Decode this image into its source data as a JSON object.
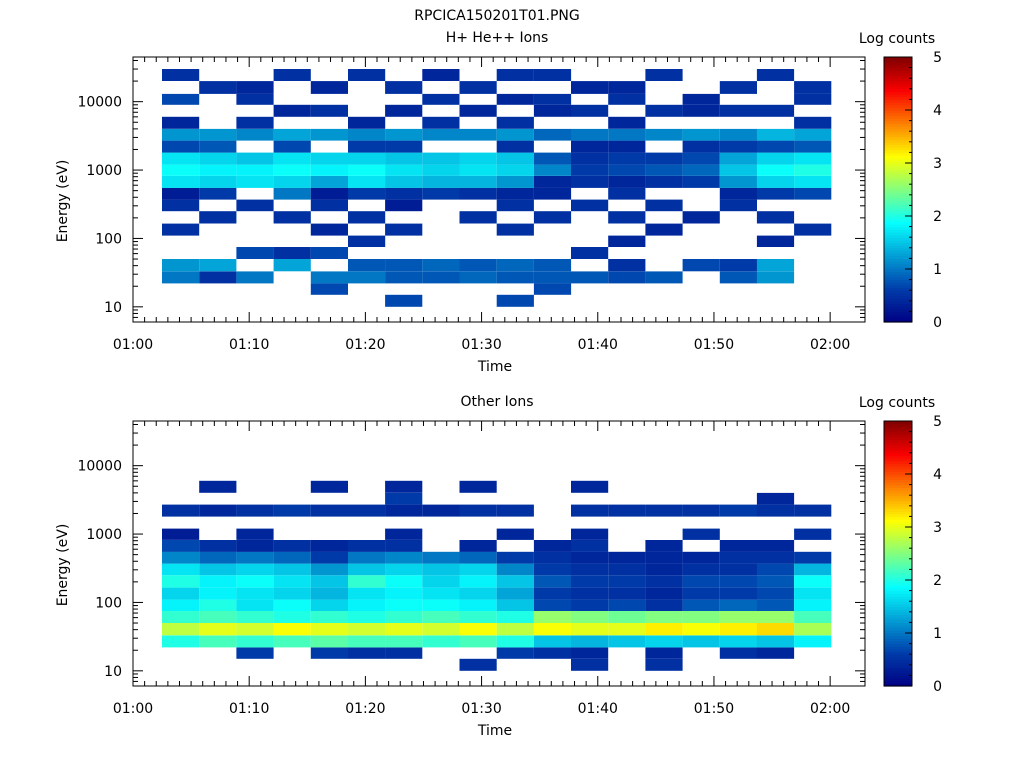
{
  "figure_title": "RPCICA150201T01.PNG",
  "colorbar_ticks": [
    "0",
    "1",
    "2",
    "3",
    "4",
    "5"
  ],
  "chart_data": [
    {
      "type": "heatmap",
      "title": "H+ He++ Ions",
      "xlabel": "Time",
      "ylabel": "Energy (eV)",
      "colorbar_label": "Log counts",
      "colorbar_range": [
        0,
        5
      ],
      "x_range_min": [
        0,
        63
      ],
      "x_ticks": [
        "01:00",
        "01:10",
        "01:20",
        "01:30",
        "01:40",
        "01:50",
        "02:00"
      ],
      "x_tick_values_min": [
        0,
        10,
        20,
        30,
        40,
        50,
        60
      ],
      "y_scale": "log",
      "y_range": [
        6,
        45000
      ],
      "y_ticks": [
        "10",
        "100",
        "1000",
        "10000"
      ],
      "y_tick_values": [
        10,
        100,
        1000,
        10000
      ],
      "time_bins_start_min": [
        2.5,
        5.7,
        8.9,
        12.1,
        15.3,
        18.5,
        21.7,
        24.9,
        28.1,
        31.3,
        34.5,
        37.7,
        40.9,
        44.1,
        47.3,
        50.5,
        53.7,
        56.9
      ],
      "time_bin_width_min": 3.2,
      "energy_bins_start_ev": [
        10,
        15,
        22,
        33,
        50,
        75,
        110,
        165,
        250,
        370,
        550,
        820,
        1200,
        1800,
        2700,
        4000,
        6000,
        9000,
        13000,
        20000
      ],
      "values": [
        [
          0,
          0,
          1.0,
          1.2,
          0,
          0,
          0.5,
          0,
          0.5,
          0.3,
          1.7,
          1.9,
          1.7,
          0.7,
          1.2,
          0.4,
          0,
          0.7,
          0,
          0.5
        ],
        [
          0,
          0,
          0.5,
          1.3,
          0,
          0,
          0,
          0.5,
          0,
          0.6,
          1.6,
          1.8,
          1.6,
          0.8,
          1.2,
          0,
          0,
          0,
          0.5,
          0
        ],
        [
          0,
          0,
          1.0,
          0,
          0.7,
          0,
          0,
          0,
          0.5,
          0,
          1.7,
          1.8,
          1.5,
          0,
          1.1,
          0.5,
          0,
          0.5,
          0.4,
          0
        ],
        [
          0,
          0,
          0,
          1.3,
          0.5,
          0,
          0,
          0.5,
          0,
          1.0,
          1.6,
          1.9,
          1.7,
          0.7,
          1.3,
          0,
          0.4,
          0,
          0,
          0.5
        ],
        [
          0,
          0.7,
          1.0,
          0,
          0.7,
          0,
          0.4,
          0,
          0.5,
          0.3,
          1.3,
          1.8,
          1.6,
          0,
          1.2,
          0,
          0.5,
          0,
          0.4,
          0
        ],
        [
          0,
          0,
          1.0,
          0.8,
          0,
          0.5,
          0,
          0.5,
          0,
          0.6,
          1.7,
          1.9,
          1.6,
          0.6,
          1.1,
          0.4,
          0,
          0,
          0,
          0.5
        ],
        [
          0.7,
          0,
          0.8,
          0.8,
          0,
          0,
          0.5,
          0,
          0.3,
          0.5,
          1.5,
          1.7,
          1.5,
          0.6,
          1.2,
          0,
          0.4,
          0,
          0.5,
          0
        ],
        [
          0,
          0,
          0.8,
          0.9,
          0,
          0,
          0,
          0,
          0,
          0.6,
          1.4,
          1.6,
          1.5,
          0,
          1.1,
          0.5,
          0,
          0.5,
          0,
          0.4
        ],
        [
          0,
          0,
          0.9,
          0.8,
          0,
          0,
          0,
          0.5,
          0,
          0.5,
          1.4,
          1.7,
          1.6,
          0,
          1.1,
          0,
          0.4,
          0,
          0.5,
          0
        ],
        [
          0.7,
          0,
          0.8,
          0.9,
          0,
          0,
          0.5,
          0,
          0.5,
          0.4,
          1.2,
          1.6,
          1.5,
          0.5,
          1.2,
          0.5,
          0,
          0.4,
          0,
          0.5
        ],
        [
          0,
          0.7,
          0.8,
          0.8,
          0,
          0,
          0,
          0.5,
          0,
          0.4,
          0.4,
          1.1,
          0.8,
          0,
          0.9,
          0,
          0.4,
          0.5,
          0,
          0.5
        ],
        [
          0,
          0,
          0.8,
          0,
          0.5,
          0,
          0,
          0,
          0.5,
          0,
          0.5,
          0.6,
          0.5,
          0.4,
          1.0,
          0,
          0.5,
          0,
          0.4,
          0
        ],
        [
          0,
          0,
          0.7,
          0.5,
          0,
          0.4,
          0,
          0.5,
          0,
          0.5,
          0.4,
          0.7,
          0.6,
          0.4,
          1.0,
          0.4,
          0,
          0.5,
          0.4,
          0
        ],
        [
          0,
          0,
          0.8,
          0,
          0,
          0,
          0.4,
          0,
          0.5,
          0,
          0.5,
          0.8,
          0.6,
          0,
          1.1,
          0,
          0.5,
          0,
          0,
          0.5
        ],
        [
          0,
          0,
          0,
          0.7,
          0,
          0,
          0,
          0.4,
          0,
          0,
          0.6,
          0.9,
          0.7,
          0.5,
          1.2,
          0,
          0.4,
          0.4,
          0,
          0
        ],
        [
          0,
          0,
          0.8,
          0.6,
          0,
          0,
          0,
          0,
          0.5,
          0.4,
          1.2,
          1.5,
          1.3,
          0.6,
          1.1,
          0,
          0.5,
          0,
          0.5,
          0
        ],
        [
          0,
          0,
          1.2,
          1.3,
          0,
          0.4,
          0,
          0.5,
          0,
          0.6,
          1.6,
          1.9,
          1.6,
          0.7,
          1.4,
          0,
          0.5,
          0,
          0,
          0.5
        ],
        [
          0,
          0,
          0,
          0,
          0,
          0,
          0.5,
          0,
          0,
          0.7,
          1.7,
          2.0,
          1.7,
          0.8,
          1.3,
          0.5,
          0,
          0.5,
          0.5,
          0
        ]
      ]
    },
    {
      "type": "heatmap",
      "title": "Other Ions",
      "xlabel": "Time",
      "ylabel": "Energy (eV)",
      "colorbar_label": "Log counts",
      "colorbar_range": [
        0,
        5
      ],
      "x_range_min": [
        0,
        63
      ],
      "x_ticks": [
        "01:00",
        "01:10",
        "01:20",
        "01:30",
        "01:40",
        "01:50",
        "02:00"
      ],
      "x_tick_values_min": [
        0,
        10,
        20,
        30,
        40,
        50,
        60
      ],
      "y_scale": "log",
      "y_range": [
        6,
        45000
      ],
      "y_ticks": [
        "10",
        "100",
        "1000",
        "10000"
      ],
      "y_tick_values": [
        10,
        100,
        1000,
        10000
      ],
      "time_bins_start_min": [
        2.5,
        5.7,
        8.9,
        12.1,
        15.3,
        18.5,
        21.7,
        24.9,
        28.1,
        31.3,
        34.5,
        37.7,
        40.9,
        44.1,
        47.3,
        50.5,
        53.7,
        56.9
      ],
      "time_bin_width_min": 3.2,
      "energy_bins_start_ev": [
        10,
        15,
        22,
        33,
        50,
        75,
        110,
        165,
        250,
        370,
        550,
        820,
        1200,
        1800,
        2700,
        4000,
        6000,
        9000,
        13000,
        20000
      ],
      "values": [
        [
          0,
          0,
          2.0,
          2.8,
          2.1,
          1.8,
          1.6,
          2.0,
          1.7,
          1.1,
          0.7,
          0.3,
          0,
          0.5,
          0,
          0,
          0,
          0,
          0,
          0
        ],
        [
          0,
          0,
          2.2,
          3.0,
          2.2,
          2.0,
          1.8,
          1.8,
          1.5,
          0.9,
          0.5,
          0,
          0,
          0.4,
          0,
          0.4,
          0,
          0,
          0,
          0
        ],
        [
          0,
          0.6,
          2.1,
          2.9,
          2.1,
          1.7,
          1.7,
          1.9,
          1.6,
          1.0,
          0.4,
          0.4,
          0,
          0.5,
          0,
          0,
          0,
          0,
          0,
          0
        ],
        [
          0,
          0,
          2.2,
          3.1,
          2.0,
          1.9,
          1.6,
          1.7,
          1.5,
          0.9,
          0.5,
          0,
          0,
          0.6,
          0,
          0,
          0,
          0,
          0,
          0
        ],
        [
          0,
          0.6,
          2.3,
          3.0,
          2.1,
          1.6,
          1.4,
          1.5,
          1.2,
          0.6,
          0.4,
          0,
          0,
          0.5,
          0,
          0.4,
          0,
          0,
          0,
          0
        ],
        [
          0,
          0.5,
          2.2,
          2.9,
          2.0,
          1.8,
          1.7,
          2.1,
          1.5,
          1.0,
          0.5,
          0,
          0,
          0.5,
          0,
          0,
          0,
          0,
          0,
          0
        ],
        [
          0,
          0.5,
          2.2,
          3.0,
          2.1,
          1.9,
          1.8,
          1.9,
          1.6,
          1.1,
          0.5,
          0.4,
          0,
          0.4,
          0.6,
          0.4,
          0,
          0,
          0,
          0
        ],
        [
          0,
          0,
          2.1,
          2.9,
          2.2,
          1.9,
          1.7,
          1.6,
          1.5,
          1.0,
          0,
          0,
          0,
          0.4,
          0,
          0,
          0,
          0,
          0,
          0
        ],
        [
          0.5,
          0,
          2.2,
          3.1,
          2.1,
          1.8,
          1.6,
          1.8,
          1.6,
          0.9,
          0.4,
          0,
          0,
          0.5,
          0,
          0.4,
          0,
          0,
          0,
          0
        ],
        [
          0,
          0.6,
          2.0,
          2.8,
          2.0,
          1.5,
          1.3,
          1.5,
          1.1,
          0.6,
          0,
          0.4,
          0,
          0.5,
          0,
          0,
          0,
          0,
          0,
          0
        ],
        [
          0,
          0.5,
          1.5,
          3.1,
          2.6,
          0.7,
          0.6,
          0.8,
          0.6,
          0.5,
          0.4,
          0,
          0,
          0,
          0,
          0,
          0,
          0,
          0,
          0
        ],
        [
          0.5,
          0.4,
          1.4,
          3.0,
          2.5,
          0.6,
          0.5,
          0.6,
          0.5,
          0.4,
          0.5,
          0.4,
          0,
          0.5,
          0,
          0.4,
          0,
          0,
          0,
          0
        ],
        [
          0,
          0,
          1.5,
          3.0,
          2.4,
          0.7,
          0.5,
          0.6,
          0.5,
          0.4,
          0,
          0,
          0,
          0.5,
          0,
          0,
          0,
          0,
          0,
          0
        ],
        [
          0.5,
          0.4,
          1.6,
          3.2,
          2.5,
          0.5,
          0.4,
          0.5,
          0.4,
          0.4,
          0.4,
          0,
          0,
          0.5,
          0,
          0,
          0,
          0,
          0,
          0
        ],
        [
          0,
          0,
          1.5,
          3.1,
          2.5,
          0.8,
          0.6,
          0.7,
          0.5,
          0.4,
          0,
          0.5,
          0,
          0.5,
          0,
          0,
          0,
          0,
          0,
          0
        ],
        [
          0,
          0.5,
          1.6,
          3.2,
          2.6,
          0.9,
          0.6,
          0.7,
          0.5,
          0.5,
          0.4,
          0,
          0,
          0.6,
          0,
          0,
          0,
          0,
          0,
          0
        ],
        [
          0,
          0.4,
          1.5,
          3.3,
          2.6,
          0.8,
          0.7,
          0.8,
          0.7,
          0.5,
          0.4,
          0,
          0,
          0.5,
          0.4,
          0,
          0,
          0,
          0,
          0
        ],
        [
          0,
          0,
          1.8,
          2.7,
          2.2,
          1.8,
          1.7,
          1.9,
          1.4,
          0.6,
          0,
          0.5,
          0,
          0.5,
          0,
          0,
          0,
          0,
          0,
          0
        ]
      ]
    }
  ]
}
